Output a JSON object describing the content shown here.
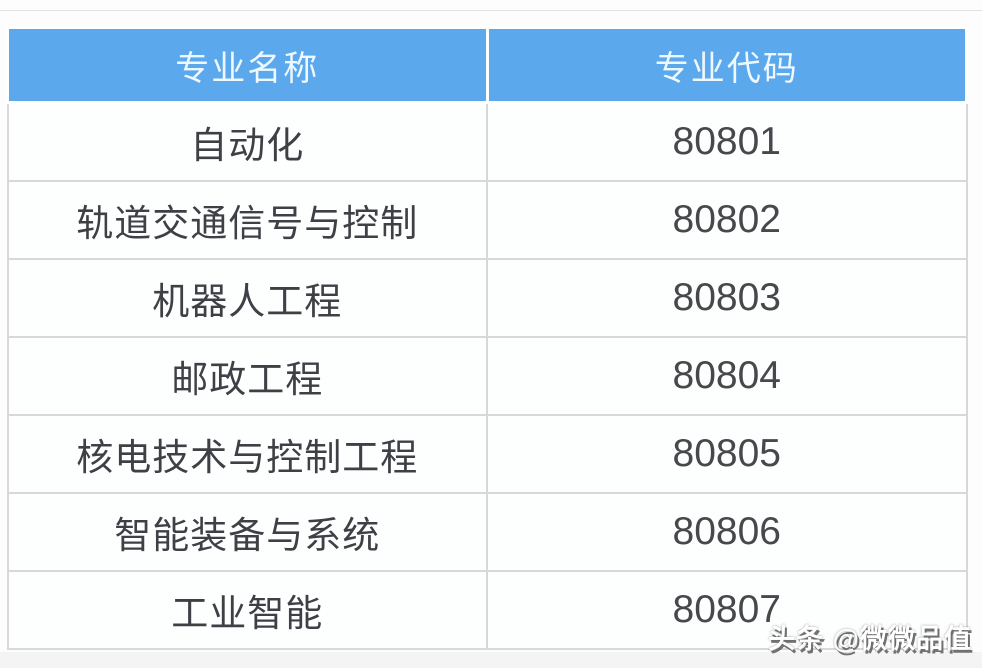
{
  "colors": {
    "header_bg": "#5BA8EC",
    "header_text": "#EEF8FF",
    "body_text": "#3F4045",
    "border": "#D8D8D8",
    "page_bg": "#FDFDFD"
  },
  "table": {
    "headers": {
      "name": "专业名称",
      "code": "专业代码"
    },
    "rows": [
      {
        "name": "自动化",
        "code": "80801"
      },
      {
        "name": "轨道交通信号与控制",
        "code": "80802"
      },
      {
        "name": "机器人工程",
        "code": "80803"
      },
      {
        "name": "邮政工程",
        "code": "80804"
      },
      {
        "name": "核电技术与控制工程",
        "code": "80805"
      },
      {
        "name": "智能装备与系统",
        "code": "80806"
      },
      {
        "name": "工业智能",
        "code": "80807"
      }
    ]
  },
  "watermark": {
    "text": "头条 @微微品值"
  }
}
